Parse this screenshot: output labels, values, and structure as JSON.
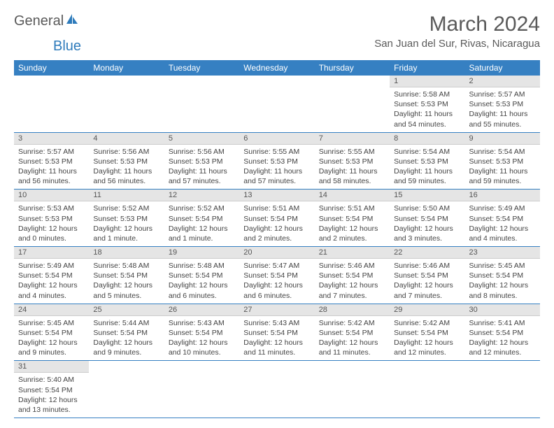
{
  "logo": {
    "text1": "General",
    "text2": "Blue"
  },
  "title": "March 2024",
  "location": "San Juan del Sur, Rivas, Nicaragua",
  "colors": {
    "header_bg": "#3680c2",
    "header_text": "#ffffff",
    "daynum_bg": "#e5e5e5",
    "daynum_text": "#555555",
    "border": "#3680c2",
    "body_text": "#444444",
    "title_color": "#5a5a5a"
  },
  "weekdays": [
    "Sunday",
    "Monday",
    "Tuesday",
    "Wednesday",
    "Thursday",
    "Friday",
    "Saturday"
  ],
  "first_weekday_index": 5,
  "days": [
    {
      "n": 1,
      "sunrise": "5:58 AM",
      "sunset": "5:53 PM",
      "daylight": "11 hours and 54 minutes."
    },
    {
      "n": 2,
      "sunrise": "5:57 AM",
      "sunset": "5:53 PM",
      "daylight": "11 hours and 55 minutes."
    },
    {
      "n": 3,
      "sunrise": "5:57 AM",
      "sunset": "5:53 PM",
      "daylight": "11 hours and 56 minutes."
    },
    {
      "n": 4,
      "sunrise": "5:56 AM",
      "sunset": "5:53 PM",
      "daylight": "11 hours and 56 minutes."
    },
    {
      "n": 5,
      "sunrise": "5:56 AM",
      "sunset": "5:53 PM",
      "daylight": "11 hours and 57 minutes."
    },
    {
      "n": 6,
      "sunrise": "5:55 AM",
      "sunset": "5:53 PM",
      "daylight": "11 hours and 57 minutes."
    },
    {
      "n": 7,
      "sunrise": "5:55 AM",
      "sunset": "5:53 PM",
      "daylight": "11 hours and 58 minutes."
    },
    {
      "n": 8,
      "sunrise": "5:54 AM",
      "sunset": "5:53 PM",
      "daylight": "11 hours and 59 minutes."
    },
    {
      "n": 9,
      "sunrise": "5:54 AM",
      "sunset": "5:53 PM",
      "daylight": "11 hours and 59 minutes."
    },
    {
      "n": 10,
      "sunrise": "5:53 AM",
      "sunset": "5:53 PM",
      "daylight": "12 hours and 0 minutes."
    },
    {
      "n": 11,
      "sunrise": "5:52 AM",
      "sunset": "5:53 PM",
      "daylight": "12 hours and 1 minute."
    },
    {
      "n": 12,
      "sunrise": "5:52 AM",
      "sunset": "5:54 PM",
      "daylight": "12 hours and 1 minute."
    },
    {
      "n": 13,
      "sunrise": "5:51 AM",
      "sunset": "5:54 PM",
      "daylight": "12 hours and 2 minutes."
    },
    {
      "n": 14,
      "sunrise": "5:51 AM",
      "sunset": "5:54 PM",
      "daylight": "12 hours and 2 minutes."
    },
    {
      "n": 15,
      "sunrise": "5:50 AM",
      "sunset": "5:54 PM",
      "daylight": "12 hours and 3 minutes."
    },
    {
      "n": 16,
      "sunrise": "5:49 AM",
      "sunset": "5:54 PM",
      "daylight": "12 hours and 4 minutes."
    },
    {
      "n": 17,
      "sunrise": "5:49 AM",
      "sunset": "5:54 PM",
      "daylight": "12 hours and 4 minutes."
    },
    {
      "n": 18,
      "sunrise": "5:48 AM",
      "sunset": "5:54 PM",
      "daylight": "12 hours and 5 minutes."
    },
    {
      "n": 19,
      "sunrise": "5:48 AM",
      "sunset": "5:54 PM",
      "daylight": "12 hours and 6 minutes."
    },
    {
      "n": 20,
      "sunrise": "5:47 AM",
      "sunset": "5:54 PM",
      "daylight": "12 hours and 6 minutes."
    },
    {
      "n": 21,
      "sunrise": "5:46 AM",
      "sunset": "5:54 PM",
      "daylight": "12 hours and 7 minutes."
    },
    {
      "n": 22,
      "sunrise": "5:46 AM",
      "sunset": "5:54 PM",
      "daylight": "12 hours and 7 minutes."
    },
    {
      "n": 23,
      "sunrise": "5:45 AM",
      "sunset": "5:54 PM",
      "daylight": "12 hours and 8 minutes."
    },
    {
      "n": 24,
      "sunrise": "5:45 AM",
      "sunset": "5:54 PM",
      "daylight": "12 hours and 9 minutes."
    },
    {
      "n": 25,
      "sunrise": "5:44 AM",
      "sunset": "5:54 PM",
      "daylight": "12 hours and 9 minutes."
    },
    {
      "n": 26,
      "sunrise": "5:43 AM",
      "sunset": "5:54 PM",
      "daylight": "12 hours and 10 minutes."
    },
    {
      "n": 27,
      "sunrise": "5:43 AM",
      "sunset": "5:54 PM",
      "daylight": "12 hours and 11 minutes."
    },
    {
      "n": 28,
      "sunrise": "5:42 AM",
      "sunset": "5:54 PM",
      "daylight": "12 hours and 11 minutes."
    },
    {
      "n": 29,
      "sunrise": "5:42 AM",
      "sunset": "5:54 PM",
      "daylight": "12 hours and 12 minutes."
    },
    {
      "n": 30,
      "sunrise": "5:41 AM",
      "sunset": "5:54 PM",
      "daylight": "12 hours and 12 minutes."
    },
    {
      "n": 31,
      "sunrise": "5:40 AM",
      "sunset": "5:54 PM",
      "daylight": "12 hours and 13 minutes."
    }
  ],
  "labels": {
    "sunrise": "Sunrise:",
    "sunset": "Sunset:",
    "daylight": "Daylight:"
  }
}
